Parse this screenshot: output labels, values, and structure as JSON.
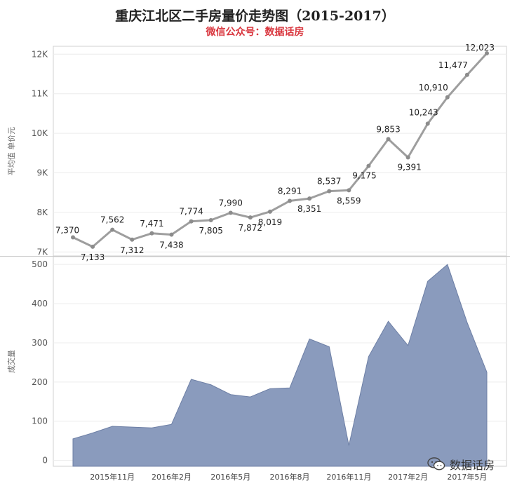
{
  "title": "重庆江北区二手房量价走势图（2015-2017）",
  "subtitle": "微信公众号：数据话房",
  "watermark": {
    "text": "数据话房",
    "icon": "wechat-icon"
  },
  "colors": {
    "line": "#9e9e9e",
    "area": "#8a9bbd",
    "area_edge": "#6d7fa5",
    "subtitle": "#d9363e"
  },
  "chart_data": [
    {
      "type": "line",
      "ylabel": "平均值 单价元",
      "ylim": [
        6900,
        12200
      ],
      "yticks": [
        7000,
        8000,
        9000,
        10000,
        11000,
        12000
      ],
      "ytick_labels": [
        "7K",
        "8K",
        "9K",
        "10K",
        "11K",
        "12K"
      ],
      "series": [
        {
          "values": [
            7370,
            7133,
            7562,
            7312,
            7471,
            7438,
            7774,
            7805,
            7990,
            7872,
            8019,
            8291,
            8351,
            8537,
            8559,
            9175,
            9853,
            9391,
            10243,
            10910,
            11477,
            12023
          ]
        }
      ],
      "data_labels": [
        "7,370",
        "7,133",
        "7,562",
        "7,312",
        "7,471",
        "7,438",
        "7,774",
        "7,805",
        "7,990",
        "7,872",
        "8,019",
        "8,291",
        "8,351",
        "8,537",
        "8,559",
        "9,175",
        "9,853",
        "9,391",
        "10,243",
        "10,910",
        "11,477",
        "12,023"
      ],
      "grid": true
    },
    {
      "type": "area",
      "ylabel": "成交量",
      "ylim": [
        -15,
        520
      ],
      "yticks": [
        0,
        100,
        200,
        300,
        400,
        500
      ],
      "ytick_labels": [
        "0",
        "100",
        "200",
        "300",
        "400",
        "500"
      ],
      "series": [
        {
          "values": [
            55,
            70,
            87,
            85,
            83,
            92,
            207,
            193,
            168,
            162,
            183,
            185,
            310,
            290,
            38,
            265,
            355,
            293,
            457,
            500,
            352,
            225
          ]
        }
      ],
      "x_tick_labels": [
        {
          "index": 2,
          "label": "2015年11月"
        },
        {
          "index": 5,
          "label": "2016年2月"
        },
        {
          "index": 8,
          "label": "2016年5月"
        },
        {
          "index": 11,
          "label": "2016年8月"
        },
        {
          "index": 14,
          "label": "2016年11月"
        },
        {
          "index": 17,
          "label": "2017年2月"
        },
        {
          "index": 20,
          "label": "2017年5月"
        }
      ],
      "grid": true
    }
  ]
}
